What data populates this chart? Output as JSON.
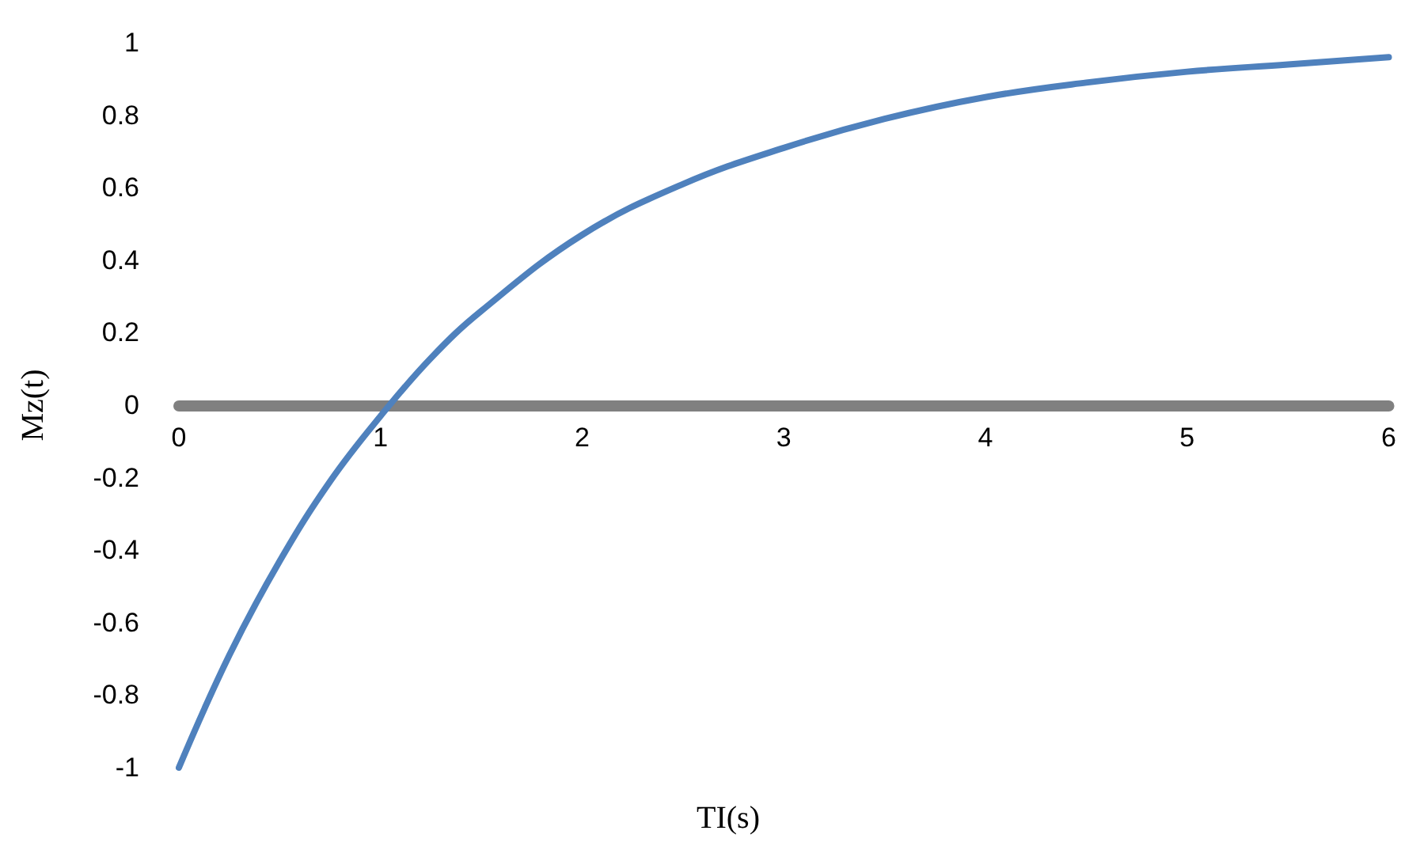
{
  "chart_data": {
    "type": "line",
    "xlabel": "TI(s)",
    "ylabel": "Mz(t)",
    "x": [
      0,
      0.25,
      0.5,
      0.75,
      1,
      1.25,
      1.5,
      2,
      2.5,
      3,
      3.5,
      4,
      4.5,
      5,
      5.5,
      6
    ],
    "series": [
      {
        "color": "#4f81bd",
        "values": [
          -1,
          -0.69,
          -0.43,
          -0.21,
          -0.03,
          0.13,
          0.26,
          0.47,
          0.61,
          0.71,
          0.79,
          0.85,
          0.89,
          0.92,
          0.94,
          0.96
        ]
      }
    ],
    "xlim": [
      0,
      6
    ],
    "xticks": [
      0,
      1,
      2,
      3,
      4,
      5,
      6
    ],
    "ylim": [
      -1,
      1
    ],
    "yticks": [
      -1,
      -0.8,
      -0.6,
      -0.4,
      -0.2,
      0,
      0.2,
      0.4,
      0.6,
      0.8,
      1
    ],
    "grid": false,
    "marker": "none",
    "line_style": "solid"
  }
}
